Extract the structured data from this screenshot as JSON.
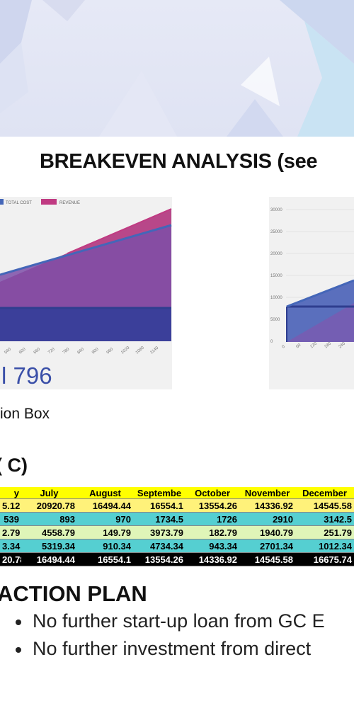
{
  "breakeven": {
    "title": "BREAKEVEN ANALYSIS (see"
  },
  "chart1": {
    "legend": [
      "TOTAL COST",
      "REVENUE"
    ],
    "x_ticks": [
      "540",
      "600",
      "660",
      "720",
      "780",
      "840",
      "900",
      "960",
      "1020",
      "1080",
      "1140"
    ],
    "breakeven_value": "l 796"
  },
  "chart2": {
    "y_ticks": [
      "30000",
      "25000",
      "20000",
      "15000",
      "10000",
      "5000",
      "0"
    ],
    "x_ticks": [
      "0",
      "60",
      "120",
      "180",
      "240"
    ]
  },
  "caption": "ion Box",
  "section_c": "( C)",
  "cashflow": {
    "headers": [
      "y",
      "July",
      "August",
      "Septembe",
      "October",
      "November",
      "December"
    ],
    "rows": [
      [
        "5.12",
        "20920.78",
        "16494.44",
        "16554.1",
        "13554.26",
        "14336.92",
        "14545.58"
      ],
      [
        "539",
        "893",
        "970",
        "1734.5",
        "1726",
        "2910",
        "3142.5"
      ],
      [
        "2.79",
        "4558.79",
        "149.79",
        "3973.79",
        "182.79",
        "1940.79",
        "251.79"
      ],
      [
        "3.34",
        "5319.34",
        "910.34",
        "4734.34",
        "943.34",
        "2701.34",
        "1012.34"
      ],
      [
        "20.78",
        "16494.44",
        "16554.1",
        "13554.26",
        "14336.92",
        "14545.58",
        "16675.74"
      ]
    ]
  },
  "action_plan": {
    "title": "ACTION PLAN",
    "items": [
      "No further start-up loan from GC E",
      "No further investment from direct"
    ]
  },
  "colors": {
    "total_cost": "#4466b8",
    "revenue": "#c03a82",
    "fixed_cost": "#2f3e8f",
    "big_number": "#3a4fa8"
  }
}
